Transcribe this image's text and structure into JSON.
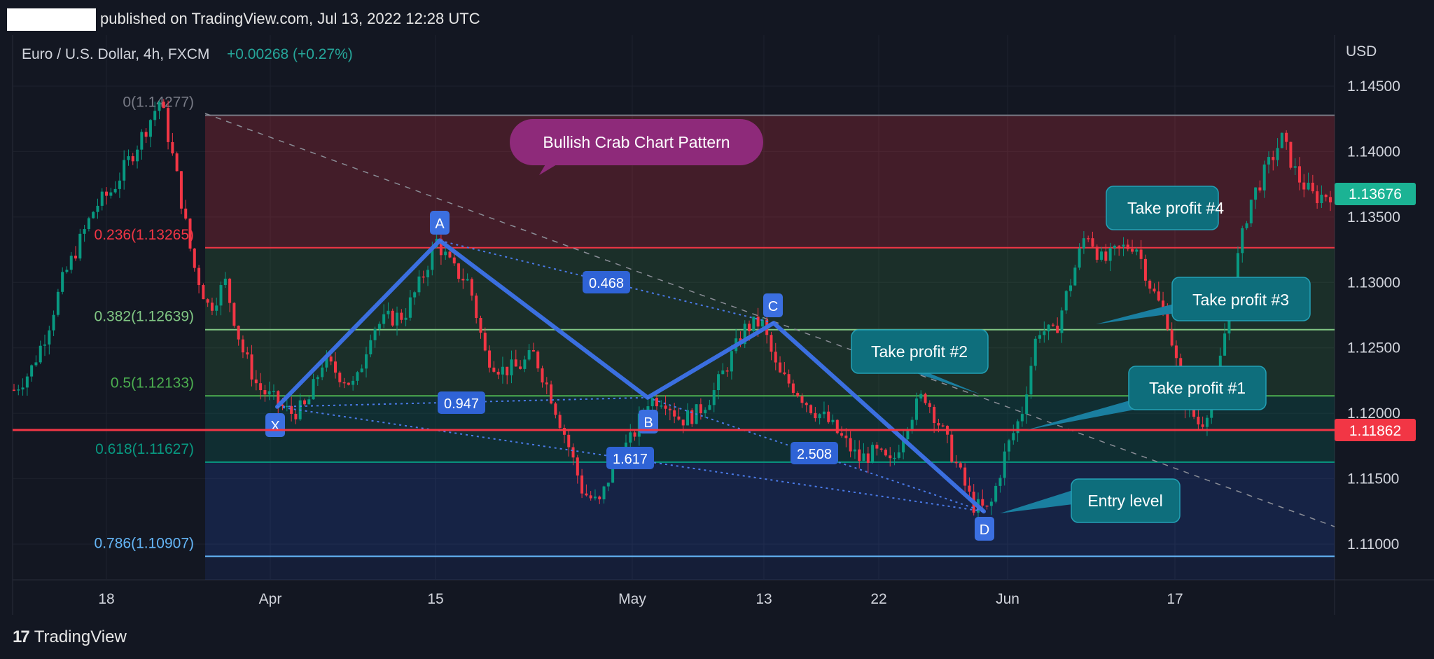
{
  "header": {
    "published_text": "published on TradingView.com, Jul 13, 2022 12:28 UTC"
  },
  "legend": {
    "symbol": "Euro / U.S. Dollar, 4h, FXCM",
    "change": "+0.00268 (+0.27%)"
  },
  "axis": {
    "currency": "USD",
    "price_ticks": [
      "1.14500",
      "1.14000",
      "1.13500",
      "1.13000",
      "1.12500",
      "1.12000",
      "1.11500",
      "1.11000"
    ],
    "date_ticks": [
      "18",
      "Apr",
      "15",
      "May",
      "13",
      "22",
      "Jun",
      "17"
    ],
    "last_price_label": "1.13676",
    "hline_price_label": "1.11862"
  },
  "fib_levels": [
    {
      "label": "0(1.14277)",
      "price": 1.14277,
      "color": "#787b86"
    },
    {
      "label": "0.236(1.13265)",
      "price": 1.13265,
      "color": "#f23645"
    },
    {
      "label": "0.382(1.12639)",
      "price": 1.12639,
      "color": "#81c784"
    },
    {
      "label": "0.5(1.12133)",
      "price": 1.12133,
      "color": "#4caf50"
    },
    {
      "label": "0.618(1.11627)",
      "price": 1.11627,
      "color": "#089981"
    },
    {
      "label": "0.786(1.10907)",
      "price": 1.10907,
      "color": "#64b5f6"
    }
  ],
  "pattern": {
    "points": [
      {
        "label": "X",
        "price": 1.1205
      },
      {
        "label": "A",
        "price": 1.1332
      },
      {
        "label": "B",
        "price": 1.1212
      },
      {
        "label": "C",
        "price": 1.1269
      },
      {
        "label": "D",
        "price": 1.1125
      }
    ],
    "ratios": [
      "0.468",
      "0.947",
      "1.617",
      "2.508"
    ]
  },
  "annotations": {
    "title": "Bullish Crab Chart Pattern",
    "tp4": "Take profit #4",
    "tp3": "Take profit #3",
    "tp2": "Take profit #2",
    "tp1": "Take profit #1",
    "entry": "Entry level"
  },
  "branding": {
    "logo_text": "TradingView"
  },
  "colors": {
    "background": "#131722",
    "up_candle": "#089981",
    "down_candle": "#f23645",
    "pattern_line": "#2962ff",
    "callout_teal": "#0e7c8a",
    "callout_purple": "#8e2a7a",
    "last_price_badge": "#1bb394",
    "hline_badge": "#f23645"
  },
  "chart_data": {
    "type": "candlestick",
    "symbol": "Euro / U.S. Dollar, 4h, FXCM",
    "ylim": [
      1.107,
      1.147
    ],
    "x_ticks": [
      "18",
      "Apr",
      "15",
      "May",
      "13",
      "22",
      "Jun",
      "17"
    ],
    "close_path_approx": [
      1.1218,
      1.1232,
      1.1262,
      1.1302,
      1.133,
      1.1358,
      1.137,
      1.1392,
      1.1415,
      1.144,
      1.1382,
      1.1315,
      1.128,
      1.13,
      1.125,
      1.122,
      1.121,
      1.12,
      1.1205,
      1.124,
      1.123,
      1.122,
      1.1265,
      1.1272,
      1.1275,
      1.13,
      1.1332,
      1.131,
      1.13,
      1.1245,
      1.1233,
      1.1235,
      1.1245,
      1.1215,
      1.118,
      1.114,
      1.113,
      1.1165,
      1.118,
      1.121,
      1.1212,
      1.1195,
      1.12,
      1.1215,
      1.124,
      1.1265,
      1.127,
      1.123,
      1.122,
      1.1205,
      1.1195,
      1.118,
      1.1165,
      1.117,
      1.116,
      1.1195,
      1.1215,
      1.119,
      1.116,
      1.113,
      1.1125,
      1.117,
      1.12,
      1.1265,
      1.126,
      1.13,
      1.134,
      1.1315,
      1.1325,
      1.133,
      1.1295,
      1.127,
      1.121,
      1.119,
      1.1222,
      1.13,
      1.136,
      1.1385,
      1.141,
      1.138,
      1.1365,
      1.1368
    ]
  }
}
